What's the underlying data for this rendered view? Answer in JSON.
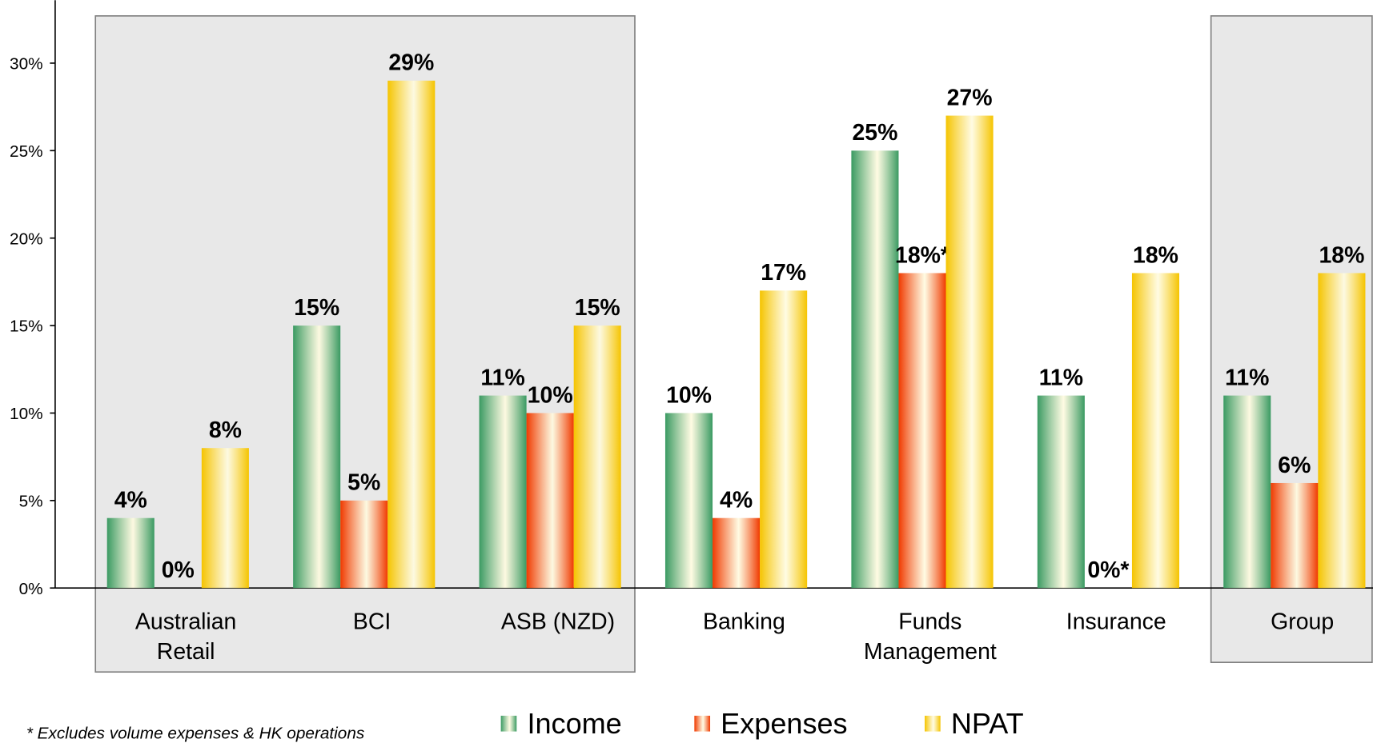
{
  "chart_data": {
    "type": "bar",
    "categories": [
      "Australian Retail",
      "BCI",
      "ASB (NZD)",
      "Banking",
      "Funds Management",
      "Insurance",
      "Group"
    ],
    "series": [
      {
        "name": "Income",
        "color": "#3a9a62",
        "values": [
          4,
          15,
          11,
          10,
          25,
          11,
          11
        ],
        "value_labels": [
          "4%",
          "15%",
          "11%",
          "10%",
          "25%",
          "11%",
          "11%"
        ]
      },
      {
        "name": "Expenses",
        "color": "#f03a00",
        "values": [
          0,
          5,
          10,
          4,
          18,
          0,
          6
        ],
        "value_labels": [
          "0%",
          "5%",
          "10%",
          "4%",
          "18%*",
          "0%*",
          "6%"
        ]
      },
      {
        "name": "NPAT",
        "color": "#f5c400",
        "values": [
          8,
          29,
          15,
          17,
          27,
          18,
          18
        ],
        "value_labels": [
          "8%",
          "29%",
          "15%",
          "17%",
          "27%",
          "18%",
          "18%"
        ]
      }
    ],
    "ylim": [
      0,
      33.6
    ],
    "yticks": [
      {
        "value": 0,
        "label": "0%"
      },
      {
        "value": 5,
        "label": "5%"
      },
      {
        "value": 10,
        "label": "10%"
      },
      {
        "value": 15,
        "label": "15%"
      },
      {
        "value": 20,
        "label": "20%"
      },
      {
        "value": 25,
        "label": "25%"
      },
      {
        "value": 30,
        "label": "30%"
      }
    ],
    "footnote": "*  Excludes volume expenses & HK operations"
  }
}
